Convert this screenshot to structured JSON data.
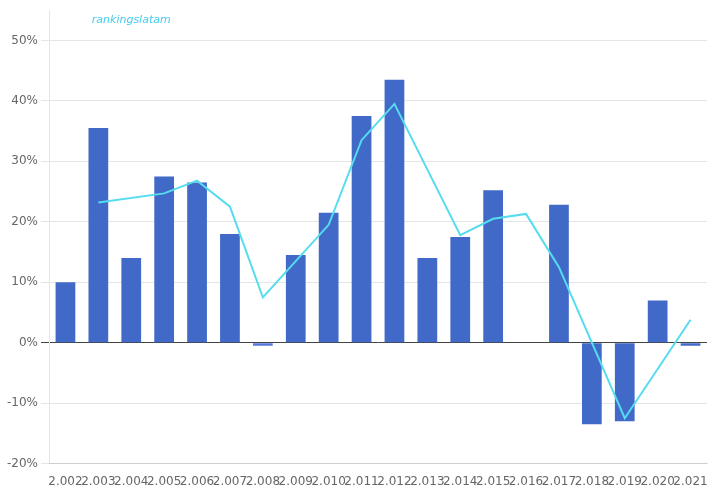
{
  "chart_data": {
    "type": "bar",
    "categories": [
      "2.002",
      "2.003",
      "2.004",
      "2.005",
      "2.006",
      "2.007",
      "2.008",
      "2.009",
      "2.010",
      "2.011",
      "2.012",
      "2.013",
      "2.014",
      "2.015",
      "2.016",
      "2.017",
      "2.018",
      "2.019",
      "2.020",
      "2.021"
    ],
    "series": [
      {
        "type": "bar",
        "colors": [
          "#4169c8",
          "#4169c8",
          "#4169c8",
          "#4169c8",
          "#4169c8",
          "#4169c8",
          "#5577dd",
          "#4169c8",
          "#4169c8",
          "#4169c8",
          "#4169c8",
          "#4169c8",
          "#4169c8",
          "#4169c8",
          "#4169c8",
          "#4169c8",
          "#4169c8",
          "#4169c8",
          "#4169c8",
          "#4169c8"
        ],
        "values": [
          0.1,
          0.355,
          0.14,
          0.275,
          0.265,
          0.18,
          -0.005,
          0.145,
          0.215,
          0.375,
          0.435,
          0.14,
          0.175,
          0.252,
          0.0,
          0.228,
          -0.135,
          -0.13,
          0.07,
          -0.005
        ]
      },
      {
        "type": "line",
        "color": "#55ddee",
        "values": [
          null,
          0.232,
          null,
          0.247,
          0.268,
          0.225,
          0.075,
          null,
          0.195,
          0.335,
          0.395,
          null,
          0.178,
          0.205,
          0.213,
          0.125,
          0.0,
          -0.125,
          null,
          0.038
        ]
      }
    ],
    "ylim": [
      -0.2,
      0.55
    ],
    "yticks": [
      {
        "value": -0.2,
        "label": "-20%"
      },
      {
        "value": -0.1,
        "label": "-10%"
      },
      {
        "value": 0.0,
        "label": "0%"
      },
      {
        "value": 0.1,
        "label": "10%"
      },
      {
        "value": 0.2,
        "label": "20%"
      },
      {
        "value": 0.3,
        "label": "30%"
      },
      {
        "value": 0.4,
        "label": "40%"
      },
      {
        "value": 0.5,
        "label": "50%"
      }
    ],
    "grid": true,
    "annotations": [
      {
        "text": "rankingslatam",
        "color": "#44ccee"
      }
    ]
  }
}
